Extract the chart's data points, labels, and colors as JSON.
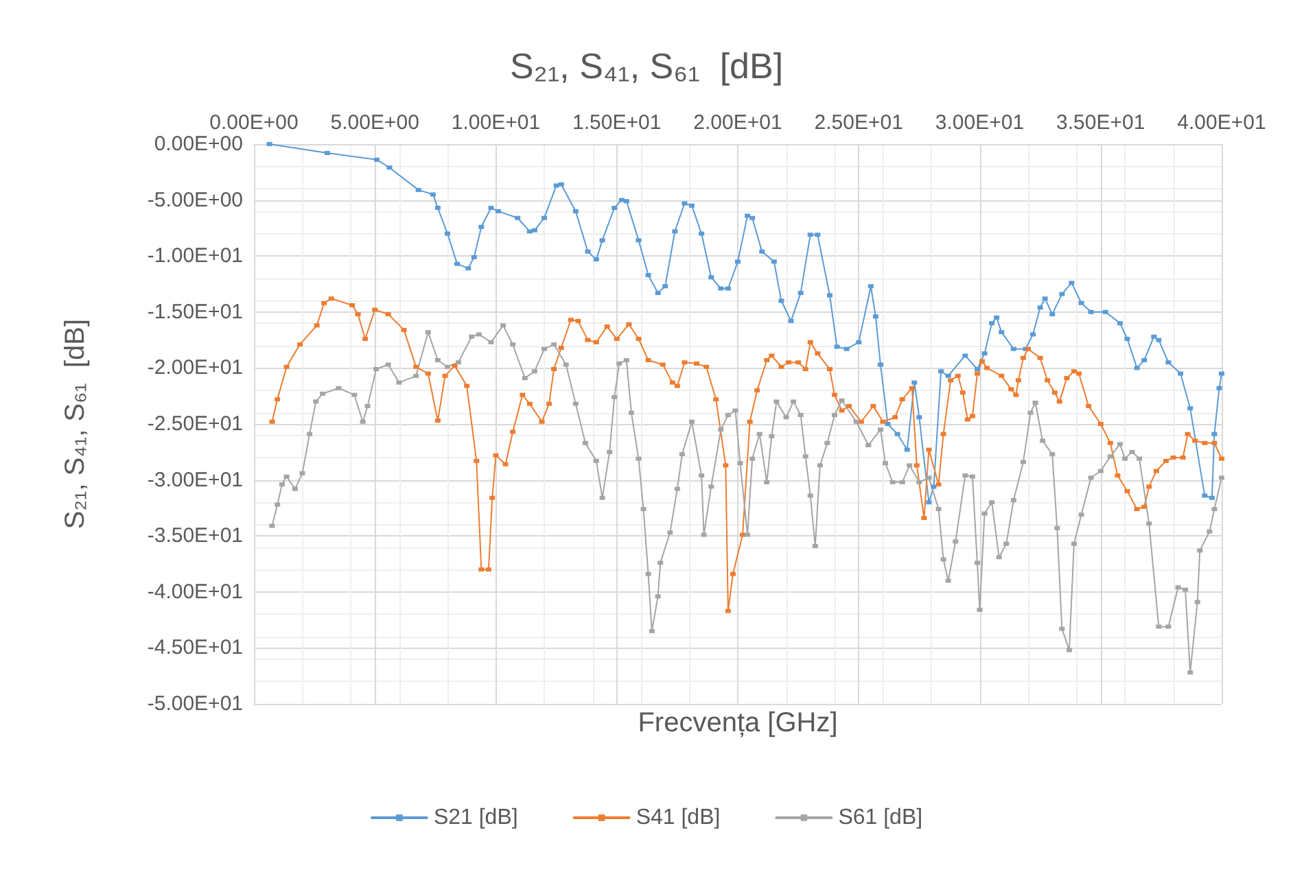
{
  "chart_data": {
    "type": "line",
    "title": "S₂₁, S₄₁, S₆₁  [dB]",
    "xlabel": "Frecvența [GHz]",
    "ylabel": "S₂₁, S₄₁, S₆₁  [dB]",
    "xlim": [
      0,
      40
    ],
    "ylim": [
      -50,
      0
    ],
    "xticks": [
      {
        "value": 0,
        "label": "0.00E+00"
      },
      {
        "value": 5,
        "label": "5.00E+00"
      },
      {
        "value": 10,
        "label": "1.00E+01"
      },
      {
        "value": 15,
        "label": "1.50E+01"
      },
      {
        "value": 20,
        "label": "2.00E+01"
      },
      {
        "value": 25,
        "label": "2.50E+01"
      },
      {
        "value": 30,
        "label": "3.00E+01"
      },
      {
        "value": 35,
        "label": "3.50E+01"
      },
      {
        "value": 40,
        "label": "4.00E+01"
      }
    ],
    "yticks": [
      {
        "value": 0,
        "label": "0.00E+00"
      },
      {
        "value": -5,
        "label": "-5.00E+00"
      },
      {
        "value": -10,
        "label": "-1.00E+01"
      },
      {
        "value": -15,
        "label": "-1.50E+01"
      },
      {
        "value": -20,
        "label": "-2.00E+01"
      },
      {
        "value": -25,
        "label": "-2.50E+01"
      },
      {
        "value": -30,
        "label": "-3.00E+01"
      },
      {
        "value": -35,
        "label": "-3.50E+01"
      },
      {
        "value": -40,
        "label": "-4.00E+01"
      },
      {
        "value": -45,
        "label": "-4.50E+01"
      },
      {
        "value": -50,
        "label": "-5.00E+01"
      }
    ],
    "grid": true,
    "legend": "bottom",
    "marker": "square",
    "line_style": "solid",
    "series": [
      {
        "name": "S21 [dB]",
        "color": "#5b9bd5",
        "x": [
          0.64,
          3.03,
          5.08,
          5.6,
          6.8,
          7.4,
          7.6,
          8.0,
          8.4,
          8.86,
          9.1,
          9.4,
          9.8,
          10.1,
          10.9,
          11.4,
          11.6,
          12.0,
          12.5,
          12.7,
          13.3,
          13.8,
          14.15,
          14.4,
          14.9,
          15.2,
          15.4,
          15.9,
          16.3,
          16.7,
          17.0,
          17.4,
          17.8,
          18.1,
          18.5,
          18.9,
          19.3,
          19.6,
          20.0,
          20.4,
          20.6,
          21.0,
          21.5,
          21.8,
          22.2,
          22.6,
          23.0,
          23.3,
          23.8,
          24.1,
          24.5,
          25.0,
          25.5,
          25.7,
          25.9,
          26.2,
          26.6,
          27.0,
          27.3,
          27.5,
          27.9,
          28.1,
          28.4,
          28.7,
          29.4,
          29.9,
          30.2,
          30.5,
          30.7,
          30.9,
          31.4,
          31.9,
          32.2,
          32.5,
          32.7,
          33.0,
          33.4,
          33.8,
          34.2,
          34.6,
          35.2,
          35.8,
          36.1,
          36.5,
          36.8,
          37.2,
          37.4,
          37.8,
          38.3,
          38.7,
          39.3,
          39.6,
          39.7,
          39.9,
          40.0
        ],
        "values": [
          0,
          -0.8,
          -1.4,
          -2.1,
          -4.1,
          -4.5,
          -5.7,
          -8.0,
          -10.7,
          -11.1,
          -10.1,
          -7.4,
          -5.7,
          -6.0,
          -6.6,
          -7.8,
          -7.7,
          -6.6,
          -3.7,
          -3.6,
          -6.0,
          -9.6,
          -10.3,
          -8.6,
          -5.7,
          -5.0,
          -5.1,
          -8.6,
          -11.7,
          -13.3,
          -12.7,
          -7.8,
          -5.3,
          -5.5,
          -8.0,
          -11.9,
          -12.9,
          -12.9,
          -10.5,
          -6.4,
          -6.6,
          -9.6,
          -10.5,
          -14.0,
          -15.8,
          -13.3,
          -8.1,
          -8.1,
          -13.5,
          -18.1,
          -18.3,
          -17.7,
          -12.7,
          -15.4,
          -19.7,
          -25.0,
          -25.9,
          -27.3,
          -21.3,
          -24.4,
          -32.0,
          -30.6,
          -20.3,
          -20.7,
          -18.9,
          -20.1,
          -18.7,
          -16.0,
          -15.5,
          -16.8,
          -18.3,
          -18.3,
          -17.0,
          -14.6,
          -13.8,
          -15.2,
          -13.4,
          -12.4,
          -14.2,
          -15.0,
          -15.0,
          -16.0,
          -17.4,
          -20.0,
          -19.3,
          -17.2,
          -17.5,
          -19.5,
          -20.5,
          -23.6,
          -31.4,
          -31.6,
          -25.9,
          -21.8,
          -20.5
        ]
      },
      {
        "name": "S41 [dB]",
        "color": "#ed7d31",
        "x": [
          0.75,
          0.97,
          1.35,
          1.9,
          2.6,
          2.9,
          3.2,
          4.06,
          4.3,
          4.6,
          5.0,
          5.55,
          6.2,
          6.7,
          7.2,
          7.6,
          7.9,
          8.3,
          8.8,
          9.2,
          9.4,
          9.7,
          9.85,
          10.0,
          10.4,
          10.7,
          11.1,
          11.4,
          11.9,
          12.2,
          12.4,
          12.7,
          13.1,
          13.4,
          13.8,
          14.15,
          14.6,
          15.0,
          15.5,
          15.9,
          16.3,
          16.9,
          17.3,
          17.5,
          17.8,
          18.3,
          18.7,
          19.1,
          19.5,
          19.6,
          19.8,
          20.2,
          20.5,
          20.8,
          21.2,
          21.4,
          21.8,
          22.1,
          22.5,
          22.8,
          23.0,
          23.3,
          23.8,
          24.0,
          24.3,
          24.6,
          25.1,
          25.6,
          26.0,
          26.5,
          26.8,
          27.2,
          27.4,
          27.7,
          27.9,
          28.3,
          28.5,
          28.8,
          29.1,
          29.3,
          29.5,
          29.7,
          29.9,
          30.1,
          30.3,
          30.9,
          31.3,
          31.5,
          31.6,
          31.8,
          32.0,
          32.5,
          32.8,
          33.1,
          33.3,
          33.6,
          33.9,
          34.1,
          34.5,
          35.0,
          35.4,
          35.7,
          36.1,
          36.5,
          36.8,
          37.0,
          37.3,
          37.7,
          38.0,
          38.4,
          38.6,
          38.9,
          39.3,
          39.7,
          40.0
        ],
        "values": [
          -24.8,
          -22.8,
          -19.9,
          -17.9,
          -16.2,
          -14.2,
          -13.8,
          -14.4,
          -15.2,
          -17.4,
          -14.8,
          -15.2,
          -16.6,
          -19.9,
          -20.5,
          -24.7,
          -20.7,
          -19.8,
          -21.6,
          -28.3,
          -38.0,
          -38.0,
          -31.6,
          -27.8,
          -28.6,
          -25.7,
          -22.4,
          -23.2,
          -24.8,
          -23.2,
          -20.1,
          -18.2,
          -15.7,
          -15.8,
          -17.5,
          -17.7,
          -16.3,
          -17.4,
          -16.1,
          -17.4,
          -19.3,
          -19.7,
          -21.3,
          -21.6,
          -19.5,
          -19.6,
          -19.9,
          -22.8,
          -28.7,
          -41.7,
          -38.4,
          -34.9,
          -24.8,
          -22.0,
          -19.3,
          -18.9,
          -19.9,
          -19.5,
          -19.5,
          -20.1,
          -17.7,
          -18.7,
          -20.1,
          -22.4,
          -23.8,
          -23.4,
          -24.8,
          -23.4,
          -24.8,
          -24.4,
          -22.8,
          -21.8,
          -28.7,
          -33.4,
          -27.3,
          -30.4,
          -25.9,
          -21.1,
          -20.7,
          -22.2,
          -24.6,
          -24.3,
          -20.5,
          -19.4,
          -20.0,
          -20.7,
          -21.9,
          -22.4,
          -21.1,
          -19.1,
          -18.3,
          -19.1,
          -21.1,
          -22.2,
          -23.0,
          -20.9,
          -20.3,
          -20.5,
          -23.4,
          -25.0,
          -26.7,
          -29.6,
          -31.0,
          -32.6,
          -32.4,
          -30.6,
          -29.2,
          -28.3,
          -28.0,
          -28.0,
          -25.9,
          -26.5,
          -26.7,
          -26.7,
          -28.1
        ]
      },
      {
        "name": "S61 [dB]",
        "color": "#a5a5a5",
        "x": [
          0.75,
          0.97,
          1.16,
          1.35,
          1.7,
          2.0,
          2.3,
          2.56,
          2.84,
          3.5,
          4.15,
          4.5,
          4.7,
          5.05,
          5.55,
          6.0,
          6.7,
          7.2,
          7.6,
          8.0,
          8.45,
          9.0,
          9.3,
          9.8,
          10.3,
          10.7,
          11.2,
          11.6,
          12.0,
          12.4,
          12.9,
          13.3,
          13.7,
          14.15,
          14.4,
          14.7,
          14.9,
          15.1,
          15.4,
          15.6,
          15.9,
          16.1,
          16.3,
          16.45,
          16.7,
          16.8,
          17.2,
          17.5,
          17.7,
          18.1,
          18.5,
          18.6,
          18.9,
          19.3,
          19.6,
          19.9,
          20.1,
          20.4,
          20.6,
          20.9,
          21.2,
          21.4,
          21.6,
          22.0,
          22.3,
          22.6,
          22.8,
          23.0,
          23.2,
          23.4,
          23.7,
          24.0,
          24.3,
          24.9,
          25.4,
          25.9,
          26.1,
          26.4,
          26.8,
          27.1,
          27.5,
          27.9,
          28.3,
          28.5,
          28.7,
          29.0,
          29.4,
          29.7,
          29.9,
          30.0,
          30.2,
          30.5,
          30.8,
          31.1,
          31.4,
          31.8,
          32.1,
          32.3,
          32.6,
          33.0,
          33.2,
          33.4,
          33.7,
          33.9,
          34.2,
          34.6,
          35.0,
          35.4,
          35.8,
          36.0,
          36.3,
          36.6,
          37.0,
          37.4,
          37.8,
          38.2,
          38.5,
          38.7,
          39.0,
          39.1,
          39.5,
          39.7,
          40.0
        ],
        "values": [
          -34.1,
          -32.2,
          -30.4,
          -29.7,
          -30.8,
          -29.4,
          -25.9,
          -23.0,
          -22.3,
          -21.8,
          -22.4,
          -24.8,
          -23.4,
          -20.1,
          -19.7,
          -21.3,
          -20.7,
          -16.8,
          -19.3,
          -19.9,
          -19.5,
          -17.2,
          -17.0,
          -17.7,
          -16.2,
          -17.9,
          -20.9,
          -20.3,
          -18.3,
          -17.9,
          -19.7,
          -23.2,
          -26.7,
          -28.3,
          -31.6,
          -27.5,
          -22.6,
          -19.6,
          -19.3,
          -24.0,
          -28.1,
          -32.6,
          -38.4,
          -43.5,
          -40.4,
          -37.4,
          -34.7,
          -30.8,
          -27.7,
          -24.8,
          -29.6,
          -34.9,
          -30.6,
          -25.5,
          -24.2,
          -23.8,
          -28.5,
          -34.9,
          -28.1,
          -25.9,
          -30.2,
          -26.1,
          -23.0,
          -24.4,
          -23.0,
          -24.2,
          -27.9,
          -31.4,
          -35.9,
          -28.7,
          -26.7,
          -24.2,
          -22.9,
          -24.8,
          -26.9,
          -25.5,
          -28.5,
          -30.2,
          -30.2,
          -28.7,
          -30.2,
          -29.8,
          -32.6,
          -37.1,
          -39.0,
          -35.5,
          -29.6,
          -29.7,
          -37.4,
          -41.6,
          -33.0,
          -32.0,
          -36.9,
          -35.7,
          -31.8,
          -28.4,
          -24.0,
          -23.1,
          -26.5,
          -27.7,
          -34.3,
          -43.3,
          -45.2,
          -35.7,
          -33.1,
          -29.8,
          -29.2,
          -27.9,
          -26.8,
          -28.1,
          -27.5,
          -28.1,
          -33.9,
          -43.1,
          -43.1,
          -39.6,
          -39.8,
          -47.2,
          -40.9,
          -36.3,
          -34.6,
          -32.6,
          -29.8
        ]
      }
    ]
  }
}
